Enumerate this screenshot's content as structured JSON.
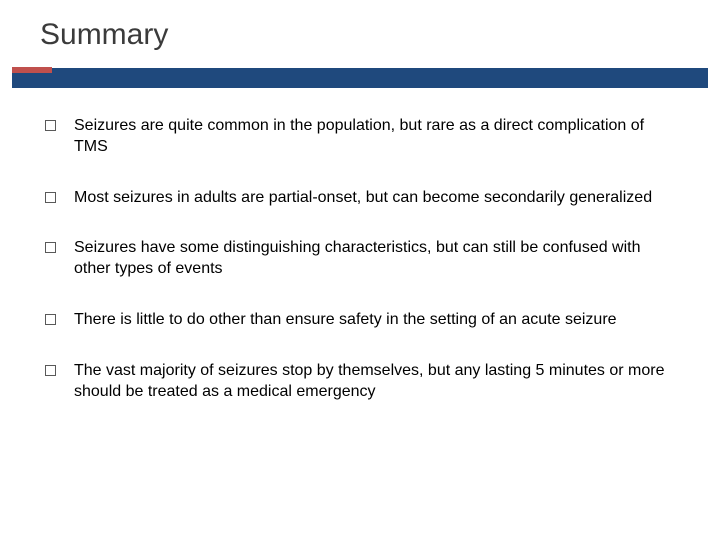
{
  "slide": {
    "title": "Summary",
    "accent_bar_color": "#1f497d",
    "accent_tab_color": "#c0504d",
    "title_color": "#3b3b3b",
    "text_color": "#000000",
    "background_color": "#ffffff",
    "title_fontsize": 30,
    "body_fontsize": 16,
    "bullets": [
      "Seizures are quite common in the population, but rare as a direct complication of TMS",
      "Most seizures in adults are partial-onset, but can become secondarily generalized",
      "Seizures have some distinguishing characteristics, but can still be confused with other types of events",
      "There is little to do other than ensure safety in the setting of an acute seizure",
      "The vast majority of seizures stop by themselves, but any lasting 5 minutes or more should be treated as a medical emergency"
    ]
  }
}
